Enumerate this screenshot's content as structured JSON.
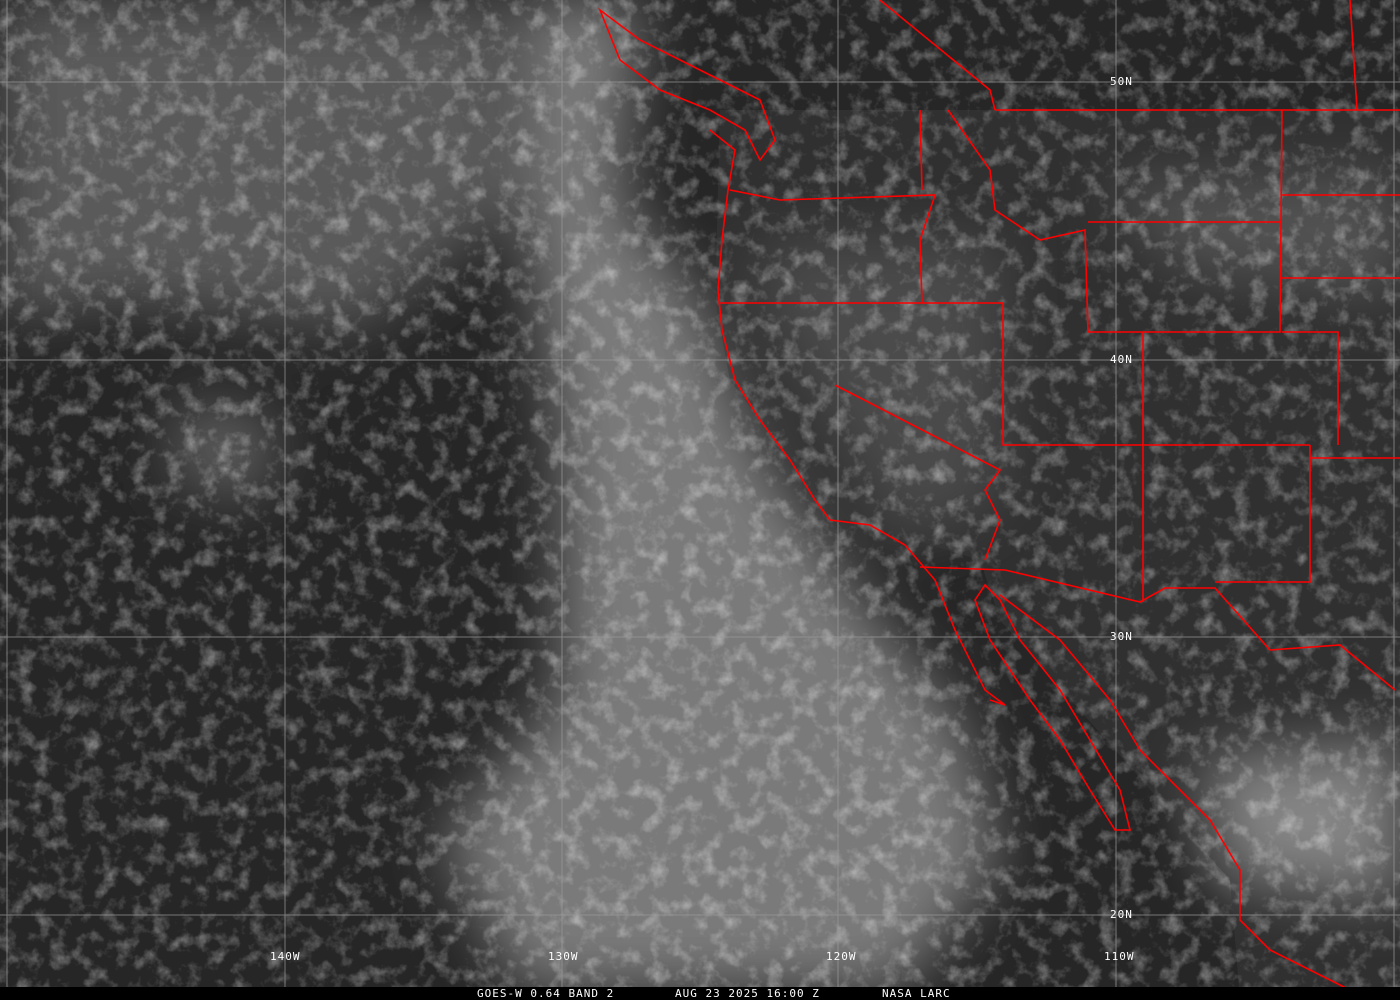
{
  "image": {
    "satellite": "GOES-W",
    "channel": "0.64",
    "band": "BAND 2",
    "date": "AUG 23 2025",
    "time": "16:00 Z",
    "source": "NASA LARC"
  },
  "caption": {
    "product": "GOES-W 0.64 BAND 2",
    "datetime": "AUG 23 2025 16:00 Z",
    "credit": "NASA LARC"
  },
  "latitude_labels": [
    "50N",
    "40N",
    "30N",
    "20N"
  ],
  "longitude_labels": [
    "140W",
    "130W",
    "120W",
    "110W"
  ],
  "colors": {
    "borders": "#ff0000",
    "grid": "#9a9a9a",
    "background": "#2b2b2b",
    "caption_bg": "#000000"
  }
}
